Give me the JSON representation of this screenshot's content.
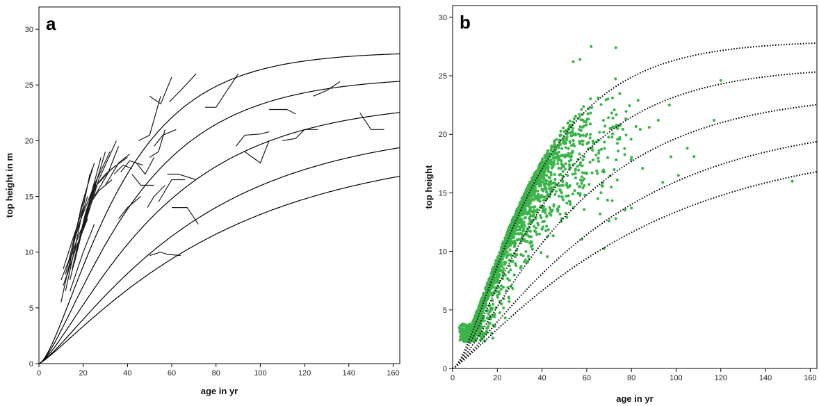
{
  "chart_data": [
    {
      "type": "line",
      "panel_label": "a",
      "xlabel": "age in yr",
      "ylabel": "top height in m",
      "xlim": [
        0,
        163
      ],
      "ylim": [
        0,
        32
      ],
      "xticks": [
        0,
        20,
        40,
        60,
        80,
        100,
        120,
        140,
        160
      ],
      "yticks": [
        0,
        5,
        10,
        15,
        20,
        25,
        30
      ],
      "grid": false,
      "curve_color": "#000000",
      "site_curves": [
        {
          "asymptote": 28,
          "rate": 0.033,
          "shape": 1.6
        },
        {
          "asymptote": 25.8,
          "rate": 0.027,
          "shape": 1.5
        },
        {
          "asymptote": 23.6,
          "rate": 0.021,
          "shape": 1.4
        },
        {
          "asymptote": 21.4,
          "rate": 0.016,
          "shape": 1.3
        },
        {
          "asymptote": 19.6,
          "rate": 0.013,
          "shape": 1.2
        }
      ],
      "plot_trajectories": [
        [
          [
            12,
            6.5
          ],
          [
            18,
            12
          ],
          [
            23,
            17
          ]
        ],
        [
          [
            14,
            7.5
          ],
          [
            20,
            12.5
          ],
          [
            26,
            16
          ]
        ],
        [
          [
            10,
            5.5
          ],
          [
            16,
            11
          ],
          [
            22,
            15
          ]
        ],
        [
          [
            13,
            8
          ],
          [
            19,
            14
          ],
          [
            25,
            18
          ]
        ],
        [
          [
            15,
            8.5
          ],
          [
            21,
            13.5
          ],
          [
            27,
            17
          ]
        ],
        [
          [
            11,
            7
          ],
          [
            17,
            10.5
          ],
          [
            22,
            13
          ]
        ],
        [
          [
            16,
            9
          ],
          [
            22,
            14
          ],
          [
            28,
            18.5
          ]
        ],
        [
          [
            12,
            8
          ],
          [
            18,
            13
          ],
          [
            24,
            17.5
          ]
        ],
        [
          [
            14,
            6.5
          ],
          [
            20,
            10
          ],
          [
            25,
            12.5
          ]
        ],
        [
          [
            17,
            10
          ],
          [
            24,
            15
          ],
          [
            30,
            19
          ]
        ],
        [
          [
            13,
            9
          ],
          [
            18,
            11
          ],
          [
            23,
            14
          ]
        ],
        [
          [
            11,
            8.5
          ],
          [
            15,
            11
          ],
          [
            20,
            14
          ]
        ],
        [
          [
            18,
            11
          ],
          [
            25,
            16
          ],
          [
            32,
            19
          ]
        ],
        [
          [
            15,
            11
          ],
          [
            21,
            14
          ],
          [
            26,
            16.5
          ]
        ],
        [
          [
            10,
            7.5
          ],
          [
            14,
            9.5
          ],
          [
            19,
            12
          ]
        ],
        [
          [
            20,
            12
          ],
          [
            27,
            16.5
          ],
          [
            35,
            20
          ]
        ],
        [
          [
            25,
            15
          ],
          [
            31,
            17
          ],
          [
            36,
            19.5
          ]
        ],
        [
          [
            26,
            16
          ],
          [
            33,
            17.5
          ],
          [
            40,
            18.5
          ]
        ],
        [
          [
            30,
            16
          ],
          [
            36,
            18
          ],
          [
            41,
            18.8
          ]
        ],
        [
          [
            34,
            17
          ],
          [
            38,
            17.8
          ],
          [
            42,
            17.5
          ]
        ],
        [
          [
            37,
            17.2
          ],
          [
            41,
            18.2
          ],
          [
            47,
            17.8
          ]
        ],
        [
          [
            24,
            15.5
          ],
          [
            30,
            17
          ],
          [
            35,
            17.8
          ]
        ],
        [
          [
            22,
            14
          ],
          [
            27,
            15.5
          ],
          [
            33,
            16.5
          ]
        ],
        [
          [
            42,
            17
          ],
          [
            46,
            16
          ],
          [
            52,
            16
          ]
        ],
        [
          [
            44,
            18
          ],
          [
            48,
            17
          ],
          [
            52,
            18.5
          ]
        ],
        [
          [
            36,
            13
          ],
          [
            40,
            14
          ],
          [
            46,
            15
          ]
        ],
        [
          [
            49,
            14
          ],
          [
            52,
            15
          ],
          [
            57,
            16
          ]
        ],
        [
          [
            54,
            14.5
          ],
          [
            60,
            16.5
          ],
          [
            66,
            16.5
          ]
        ],
        [
          [
            58,
            17
          ],
          [
            63,
            17
          ],
          [
            71,
            16.5
          ]
        ],
        [
          [
            52,
            19.5
          ],
          [
            56,
            20.5
          ],
          [
            62,
            21
          ]
        ],
        [
          [
            45,
            20
          ],
          [
            50,
            20.5
          ],
          [
            55,
            24
          ]
        ],
        [
          [
            50,
            18.5
          ],
          [
            54,
            19
          ],
          [
            57,
            21
          ]
        ],
        [
          [
            50,
            24
          ],
          [
            55,
            23.3
          ],
          [
            60,
            25.7
          ]
        ],
        [
          [
            59,
            23.5
          ],
          [
            64,
            24.5
          ],
          [
            71,
            26
          ]
        ],
        [
          [
            75,
            23
          ],
          [
            80,
            23
          ],
          [
            85,
            24.5
          ],
          [
            90,
            26
          ]
        ],
        [
          [
            60,
            14
          ],
          [
            67,
            14
          ],
          [
            72,
            12.5
          ]
        ],
        [
          [
            50,
            9.7
          ],
          [
            55,
            10
          ],
          [
            58,
            9.8
          ],
          [
            64,
            9.7
          ]
        ],
        [
          [
            89,
            19.5
          ],
          [
            93,
            20.5
          ],
          [
            100,
            20.6
          ],
          [
            104,
            20.8
          ]
        ],
        [
          [
            93,
            19
          ],
          [
            100,
            18
          ],
          [
            104,
            20
          ]
        ],
        [
          [
            104,
            22.8
          ],
          [
            112,
            22.8
          ],
          [
            116,
            22.4
          ]
        ],
        [
          [
            110,
            20
          ],
          [
            116,
            20.2
          ],
          [
            120,
            21
          ],
          [
            126,
            21
          ]
        ],
        [
          [
            124,
            24
          ],
          [
            130,
            24.5
          ],
          [
            136,
            25.3
          ]
        ],
        [
          [
            145,
            22.5
          ],
          [
            150,
            21
          ],
          [
            156,
            21
          ]
        ]
      ]
    },
    {
      "type": "scatter",
      "panel_label": "b",
      "xlabel": "age in yr",
      "ylabel": "top height",
      "xlim": [
        0,
        163
      ],
      "ylim": [
        0,
        31
      ],
      "xticks": [
        0,
        20,
        40,
        60,
        80,
        100,
        120,
        140,
        160
      ],
      "yticks": [
        0,
        5,
        10,
        15,
        20,
        25,
        30
      ],
      "grid": false,
      "point_color": "#3cb44b",
      "curve_color": "#000000",
      "curve_style": "dotted",
      "site_curves": [
        {
          "asymptote": 28,
          "rate": 0.033,
          "shape": 1.6
        },
        {
          "asymptote": 25.8,
          "rate": 0.027,
          "shape": 1.5
        },
        {
          "asymptote": 23.6,
          "rate": 0.021,
          "shape": 1.4
        },
        {
          "asymptote": 21.4,
          "rate": 0.016,
          "shape": 1.3
        },
        {
          "asymptote": 19.6,
          "rate": 0.013,
          "shape": 1.2
        }
      ],
      "point_clusters": [
        {
          "x_mean": 9,
          "x_sd": 3.5,
          "y_mean": 4.5,
          "y_sd": 1.4,
          "n": 420
        },
        {
          "x_mean": 17,
          "x_sd": 4.5,
          "y_mean": 9,
          "y_sd": 2,
          "n": 380
        },
        {
          "x_mean": 27,
          "x_sd": 5,
          "y_mean": 13,
          "y_sd": 2.2,
          "n": 330
        },
        {
          "x_mean": 36,
          "x_sd": 6,
          "y_mean": 16,
          "y_sd": 2.2,
          "n": 520
        },
        {
          "x_mean": 48,
          "x_sd": 8,
          "y_mean": 18,
          "y_sd": 2.4,
          "n": 300
        },
        {
          "x_mean": 64,
          "x_sd": 11,
          "y_mean": 19.5,
          "y_sd": 2.6,
          "n": 120
        }
      ],
      "extra_points": [
        [
          152,
          16
        ],
        [
          120,
          24.6
        ],
        [
          117,
          21.2
        ],
        [
          105,
          18.8
        ],
        [
          101,
          16.5
        ],
        [
          108,
          18.1
        ],
        [
          97,
          22.5
        ],
        [
          92,
          21.2
        ],
        [
          83,
          22.9
        ],
        [
          73,
          27.4
        ],
        [
          62,
          27.5
        ],
        [
          54,
          26.2
        ],
        [
          57,
          26.4
        ],
        [
          80,
          13.7
        ],
        [
          70,
          12.6
        ],
        [
          73,
          12.8
        ],
        [
          65,
          14.5
        ],
        [
          66,
          13.2
        ],
        [
          94,
          15.9
        ],
        [
          85,
          17.1
        ],
        [
          88,
          20.6
        ]
      ]
    }
  ]
}
